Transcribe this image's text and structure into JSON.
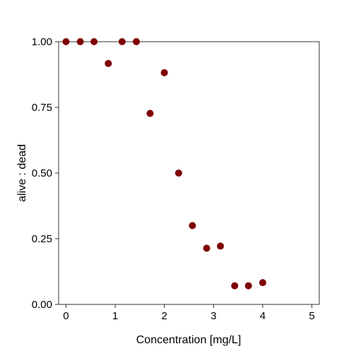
{
  "chart_data": {
    "type": "scatter",
    "xlabel": "Concentration [mg/L]",
    "ylabel": "alive : dead",
    "xlim": [
      -0.15,
      5.15
    ],
    "ylim": [
      0.0,
      1.0
    ],
    "x_ticks": [
      0,
      1,
      2,
      3,
      4,
      5
    ],
    "x_tick_labels": [
      "0",
      "1",
      "2",
      "3",
      "4",
      "5"
    ],
    "y_ticks": [
      0.0,
      0.25,
      0.5,
      0.75,
      1.0
    ],
    "y_tick_labels": [
      "0.00",
      "0.25",
      "0.50",
      "0.75",
      "1.00"
    ],
    "grid": false,
    "marker_color": "#7f0000",
    "points": [
      {
        "x": 0.0,
        "y": 1.0
      },
      {
        "x": 0.29,
        "y": 1.0
      },
      {
        "x": 0.57,
        "y": 1.0
      },
      {
        "x": 0.86,
        "y": 0.917
      },
      {
        "x": 1.14,
        "y": 1.0
      },
      {
        "x": 1.43,
        "y": 1.0
      },
      {
        "x": 1.71,
        "y": 0.727
      },
      {
        "x": 2.0,
        "y": 0.882
      },
      {
        "x": 2.29,
        "y": 0.5
      },
      {
        "x": 2.57,
        "y": 0.3
      },
      {
        "x": 2.86,
        "y": 0.214
      },
      {
        "x": 3.14,
        "y": 0.222
      },
      {
        "x": 3.43,
        "y": 0.071
      },
      {
        "x": 3.71,
        "y": 0.071
      },
      {
        "x": 4.0,
        "y": 0.083
      }
    ]
  }
}
